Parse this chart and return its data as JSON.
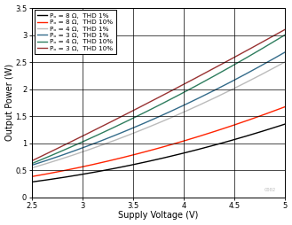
{
  "xlabel": "Supply Voltage (V)",
  "ylabel": "Output Power (W)",
  "xlim": [
    2.5,
    5.0
  ],
  "ylim": [
    0,
    3.5
  ],
  "xticks": [
    2.5,
    3.0,
    3.5,
    4.0,
    4.5,
    5.0
  ],
  "yticks": [
    0,
    0.5,
    1.0,
    1.5,
    2.0,
    2.5,
    3.0,
    3.5
  ],
  "series": [
    {
      "label": "Pₒ = 8 Ω,  THD 1%",
      "color": "#000000",
      "linewidth": 1.0,
      "coeff_a": 0.048,
      "coeff_b": -0.12
    },
    {
      "label": "Pₒ = 8 Ω,  THD 10%",
      "color": "#ff2200",
      "linewidth": 1.0,
      "coeff_a": 0.072,
      "coeff_b": -0.16
    },
    {
      "label": "Pₒ = 4 Ω,  THD 1%",
      "color": "#bbbbbb",
      "linewidth": 1.0,
      "coeff_a": 0.1,
      "coeff_b": -0.22
    },
    {
      "label": "Pₒ = 3 Ω,  THD 1%",
      "color": "#336b8a",
      "linewidth": 1.0,
      "coeff_a": 0.112,
      "coeff_b": -0.245
    },
    {
      "label": "Pₒ = 4 Ω,  THD 10%",
      "color": "#2e7d5e",
      "linewidth": 1.0,
      "coeff_a": 0.136,
      "coeff_b": -0.31
    },
    {
      "label": "Pₒ = 3 Ω,  THD 10%",
      "color": "#993333",
      "linewidth": 1.0,
      "coeff_a": 0.156,
      "coeff_b": -0.37
    }
  ],
  "legend_fontsize": 5.2,
  "axis_fontsize": 7,
  "tick_fontsize": 6,
  "background_color": "#ffffff",
  "grid_color": "#000000",
  "watermark": "C002"
}
